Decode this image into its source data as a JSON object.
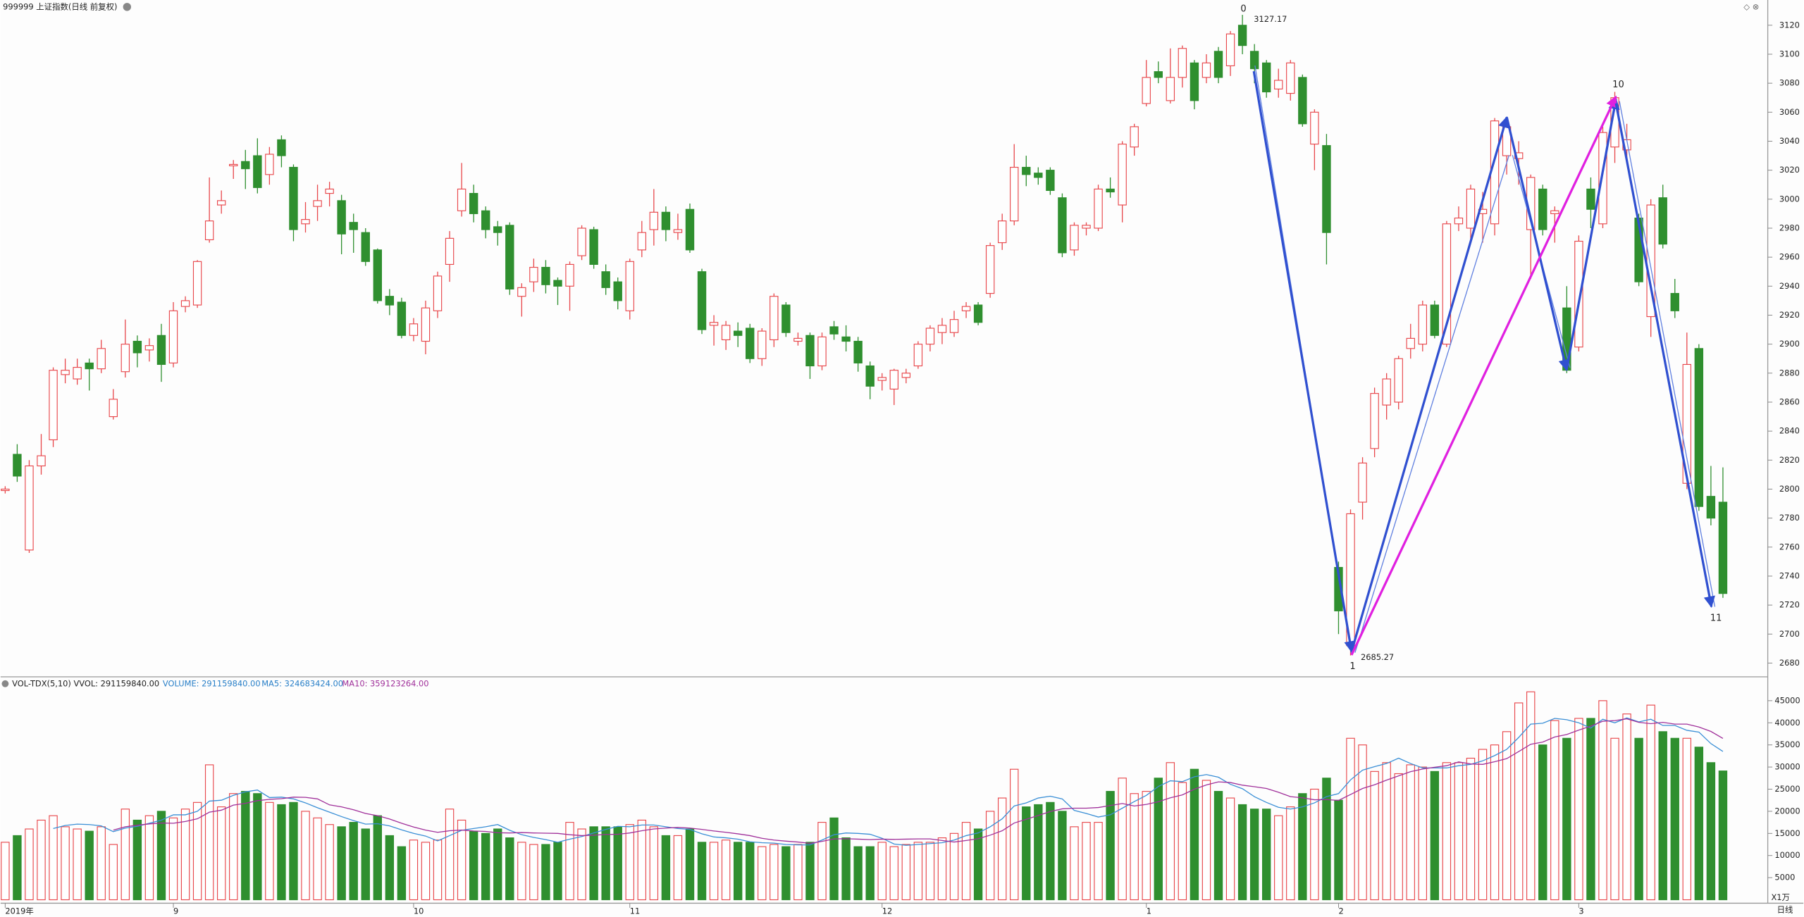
{
  "chart_data": {
    "type": "candlestick",
    "title": "999999 上证指数(日线 前复权)",
    "volume_title": "VOL-TDX(5,10) VVOL: 291159840.00",
    "volume_legend": [
      "VOLUME: 291159840.00",
      "MA5: 324683424.00",
      "MA10: 359123264.00"
    ],
    "unit_label": "X1万",
    "period_label": "日线",
    "wave_labels": [
      "0",
      "1",
      "10",
      "11"
    ],
    "price_labels": [
      "3127.17",
      "2685.27"
    ],
    "up_color": "#e8474b",
    "down_color": "#2f8f2f",
    "ma5_color": "#3a8fd6",
    "ma10_color": "#a0309a",
    "ylim": [
      2671.3,
      3137.4
    ],
    "yticks": [
      2680,
      2700,
      2720,
      2740,
      2760,
      2780,
      2800,
      2820,
      2840,
      2860,
      2880,
      2900,
      2920,
      2940,
      2960,
      2980,
      3000,
      3020,
      3040,
      3060,
      3080,
      3100,
      3120
    ],
    "volume_ylim": [
      0,
      50000
    ],
    "volume_yticks": [
      5000,
      10000,
      15000,
      20000,
      25000,
      30000,
      35000,
      40000,
      45000
    ],
    "grid": false,
    "categories": [
      "2019年",
      null,
      null,
      null,
      null,
      null,
      null,
      null,
      null,
      null,
      null,
      null,
      null,
      null,
      "9",
      null,
      null,
      null,
      null,
      null,
      null,
      null,
      null,
      null,
      null,
      null,
      null,
      null,
      null,
      null,
      null,
      null,
      null,
      null,
      "10",
      null,
      null,
      null,
      null,
      null,
      null,
      null,
      null,
      null,
      null,
      null,
      null,
      null,
      null,
      null,
      null,
      null,
      "11",
      null,
      null,
      null,
      null,
      null,
      null,
      null,
      null,
      null,
      null,
      null,
      null,
      null,
      null,
      null,
      null,
      null,
      null,
      null,
      null,
      "12",
      null,
      null,
      null,
      null,
      null,
      null,
      null,
      null,
      null,
      null,
      null,
      null,
      null,
      null,
      null,
      null,
      null,
      null,
      null,
      null,
      null,
      "1",
      null,
      null,
      null,
      null,
      null,
      null,
      null,
      null,
      null,
      null,
      null,
      null,
      null,
      null,
      null,
      "2",
      null,
      null,
      null,
      null,
      null,
      null,
      null,
      null,
      null,
      null,
      null,
      null,
      null,
      null,
      null,
      null,
      null,
      null,
      null,
      "3",
      null,
      null,
      null,
      null,
      null,
      null,
      null,
      null,
      null,
      null,
      null,
      null
    ],
    "open": [
      2799,
      2824,
      2758,
      2816,
      2834,
      2879,
      2876,
      2887,
      2883,
      2850,
      2881,
      2902,
      2896,
      2906,
      2887,
      2926,
      2927,
      2972,
      2996,
      3023,
      3026,
      3030,
      3017,
      3041,
      3022,
      2983,
      2995,
      3004,
      2999,
      2984,
      2977,
      2965,
      2933,
      2929,
      2906,
      2902,
      2923,
      2955,
      2992,
      3004,
      2992,
      2981,
      2982,
      2933,
      2943,
      2953,
      2944,
      2940,
      2961,
      2979,
      2950,
      2943,
      2923,
      2965,
      2979,
      2991,
      2977,
      2993,
      2950,
      2913,
      2903,
      2909,
      2911,
      2890,
      2903,
      2927,
      2902,
      2906,
      2885,
      2912,
      2905,
      2902,
      2885,
      2875,
      2869,
      2877,
      2885,
      2900,
      2908,
      2908,
      2923,
      2927,
      2935,
      2970,
      2985,
      3022,
      3018,
      3020,
      3001,
      2965,
      2980,
      2980,
      3007,
      2996,
      3036,
      3066,
      3088,
      3068,
      3084,
      3094,
      3084,
      3102,
      3092,
      3120,
      3102,
      3094,
      3076,
      3073,
      3084,
      3038,
      3037,
      2746,
      2692,
      2791,
      2828,
      2858,
      2860,
      2897,
      2900,
      2927,
      2900,
      2983,
      2980,
      2990,
      2983,
      3030,
      3028,
      2979,
      3007,
      2990,
      2925,
      2898,
      3007,
      2983,
      3036,
      3034,
      2987,
      2919,
      3001,
      2935,
      2804,
      2897,
      2795,
      2791
    ],
    "high": [
      2802,
      2831,
      2820,
      2838,
      2884,
      2890,
      2890,
      2890,
      2903,
      2869,
      2917,
      2906,
      2904,
      2914,
      2929,
      2933,
      2958,
      3015,
      3006,
      3027,
      3034,
      3042,
      3036,
      3044,
      3024,
      2998,
      3010,
      3012,
      3003,
      2990,
      2980,
      2966,
      2938,
      2932,
      2918,
      2930,
      2950,
      2978,
      3025,
      3010,
      2995,
      2985,
      2984,
      2942,
      2959,
      2958,
      2946,
      2957,
      2982,
      2981,
      2955,
      2946,
      2959,
      2985,
      3007,
      2995,
      2990,
      2997,
      2952,
      2920,
      2916,
      2915,
      2914,
      2911,
      2935,
      2929,
      2908,
      2908,
      2908,
      2916,
      2913,
      2905,
      2888,
      2880,
      2883,
      2883,
      2902,
      2913,
      2918,
      2923,
      2929,
      2929,
      2970,
      2990,
      3038,
      3030,
      3022,
      3022,
      3004,
      2984,
      2984,
      3010,
      3015,
      3040,
      3052,
      3096,
      3095,
      3104,
      3106,
      3096,
      3100,
      3105,
      3116,
      3127.17,
      3107,
      3096,
      3090,
      3096,
      3086,
      3062,
      3045,
      2750,
      2786,
      2822,
      2870,
      2880,
      2892,
      2914,
      2930,
      2930,
      2985,
      2995,
      3010,
      3005,
      3056,
      3052,
      3040,
      3017,
      3010,
      2995,
      2940,
      2975,
      3015,
      3050,
      3074,
      3052,
      2990,
      3000,
      3010,
      2945,
      2908,
      2900,
      2816,
      2815
    ],
    "low": [
      2797,
      2805,
      2756,
      2810,
      2829,
      2873,
      2872,
      2868,
      2880,
      2848,
      2877,
      2884,
      2888,
      2874,
      2884,
      2922,
      2925,
      2970,
      2990,
      3014,
      3007,
      3004,
      3010,
      3022,
      2971,
      2977,
      2985,
      2995,
      2962,
      2963,
      2954,
      2928,
      2920,
      2904,
      2902,
      2893,
      2918,
      2943,
      2988,
      2984,
      2973,
      2968,
      2934,
      2919,
      2936,
      2935,
      2927,
      2923,
      2958,
      2952,
      2934,
      2924,
      2917,
      2960,
      2968,
      2971,
      2972,
      2963,
      2907,
      2899,
      2896,
      2898,
      2887,
      2885,
      2898,
      2905,
      2899,
      2876,
      2882,
      2903,
      2895,
      2881,
      2862,
      2868,
      2858,
      2873,
      2883,
      2895,
      2900,
      2905,
      2918,
      2913,
      2932,
      2965,
      2982,
      3009,
      3010,
      3003,
      2960,
      2961,
      2975,
      2978,
      3001,
      2984,
      3030,
      3064,
      3080,
      3066,
      3077,
      3062,
      3080,
      3080,
      3085,
      3100,
      3080,
      3070,
      3070,
      3068,
      3050,
      3020,
      2955,
      2700,
      2685.27,
      2779,
      2822,
      2848,
      2855,
      2890,
      2895,
      2904,
      2898,
      2978,
      2972,
      2970,
      2975,
      3017,
      3010,
      2945,
      2975,
      2970,
      2880,
      2895,
      2980,
      2980,
      3025,
      3025,
      2940,
      2905,
      2966,
      2918,
      2800,
      2785,
      2775,
      2725
    ],
    "close": [
      2800,
      2809,
      2816,
      2823,
      2882,
      2882,
      2884,
      2883,
      2897,
      2862,
      2900,
      2894,
      2899,
      2886,
      2923,
      2930,
      2957,
      2985,
      2999,
      3024,
      3021,
      3008,
      3031,
      3030,
      2979,
      2986,
      2999,
      3007,
      2976,
      2979,
      2957,
      2930,
      2927,
      2906,
      2914,
      2925,
      2947,
      2973,
      3007,
      2990,
      2979,
      2977,
      2938,
      2939,
      2953,
      2941,
      2940,
      2955,
      2980,
      2955,
      2939,
      2930,
      2957,
      2977,
      2991,
      2979,
      2979,
      2965,
      2910,
      2915,
      2913,
      2906,
      2890,
      2909,
      2933,
      2908,
      2904,
      2885,
      2905,
      2907,
      2902,
      2887,
      2871,
      2877,
      2882,
      2880,
      2900,
      2911,
      2913,
      2917,
      2926,
      2915,
      2968,
      2985,
      3022,
      3017,
      3015,
      3006,
      2963,
      2982,
      2982,
      3007,
      3005,
      3038,
      3050,
      3084,
      3084,
      3084,
      3104,
      3068,
      3094,
      3084,
      3114,
      3106,
      3090,
      3074,
      3082,
      3094,
      3052,
      3060,
      2977,
      2716,
      2783,
      2818,
      2866,
      2876,
      2890,
      2904,
      2927,
      2906,
      2983,
      2987,
      3007,
      2993,
      3054,
      3050,
      3032,
      3015,
      2979,
      2992,
      2882,
      2971,
      2993,
      3046,
      3070,
      3041,
      2943,
      2996,
      2969,
      2923,
      2886,
      2788,
      2780,
      2728
    ],
    "volume": [
      13000,
      14500,
      16000,
      18000,
      19000,
      16500,
      16000,
      15500,
      16500,
      12500,
      20500,
      18000,
      19000,
      20000,
      18500,
      20500,
      22000,
      30500,
      21000,
      24000,
      24500,
      24000,
      22000,
      21500,
      22000,
      20000,
      18500,
      17000,
      16500,
      17500,
      16000,
      19000,
      14500,
      12000,
      13500,
      13000,
      13500,
      20500,
      18000,
      15500,
      15000,
      16000,
      14000,
      13000,
      12500,
      12500,
      13000,
      17500,
      16000,
      16500,
      16500,
      16500,
      17000,
      18000,
      16500,
      14500,
      14500,
      16000,
      13000,
      13000,
      13500,
      13000,
      13000,
      12000,
      12500,
      12000,
      12500,
      13000,
      17500,
      18500,
      14000,
      12000,
      12000,
      13000,
      12000,
      12500,
      13000,
      13000,
      14000,
      15000,
      17500,
      16000,
      20000,
      23000,
      29500,
      21000,
      21500,
      22000,
      20000,
      16500,
      17500,
      17500,
      24500,
      27500,
      24000,
      24500,
      27500,
      31000,
      26500,
      29500,
      27000,
      24500,
      23000,
      21500,
      20500,
      20500,
      19000,
      21000,
      24000,
      25000,
      27500,
      22500,
      36500,
      35000,
      29000,
      31000,
      28500,
      30500,
      30000,
      29000,
      31000,
      31000,
      32000,
      34000,
      35000,
      38000,
      44500,
      47000,
      35000,
      40500,
      36500,
      41000,
      41000,
      45000,
      36500,
      42000,
      36500,
      44000,
      38000,
      36500,
      36500,
      34500,
      31000,
      29116
    ]
  }
}
